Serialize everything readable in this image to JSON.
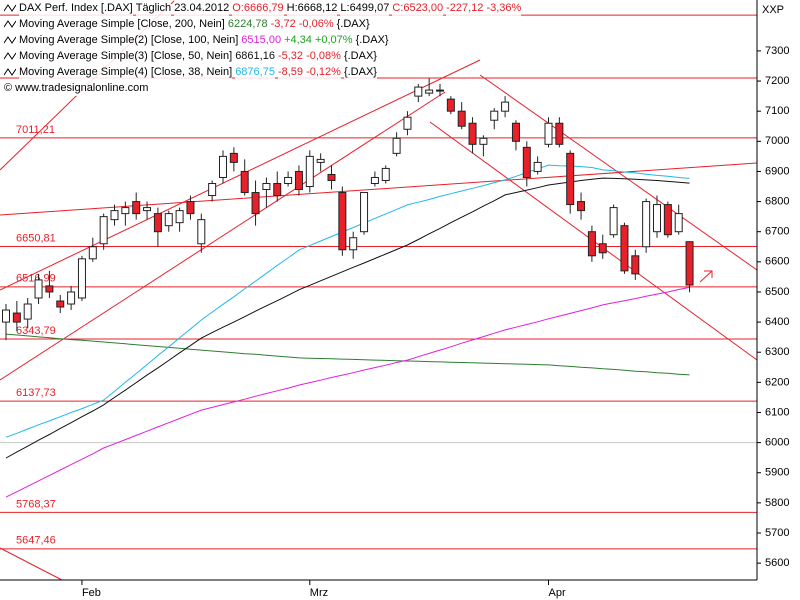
{
  "header": {
    "name": "DAX Perf. Index [.DAX]",
    "interval": "Täglich",
    "date": "23.04.2012",
    "open": "O:6666,79",
    "high": "H:6668,12",
    "low": "L:6499,07",
    "close": "C:6523,00",
    "change": "-227,12 -3,36%",
    "watermark": "© www.tradesignalonline.com",
    "axis_unit": "XXP"
  },
  "chart_data": {
    "type": "candlestick",
    "categories": [
      null,
      null,
      null,
      null,
      null,
      null,
      null,
      "Feb",
      null,
      null,
      null,
      null,
      null,
      null,
      null,
      null,
      null,
      null,
      null,
      null,
      null,
      null,
      null,
      null,
      null,
      null,
      null,
      null,
      "Mrz",
      null,
      null,
      null,
      null,
      null,
      null,
      null,
      null,
      null,
      null,
      null,
      null,
      null,
      null,
      null,
      null,
      null,
      null,
      null,
      null,
      null,
      "Apr",
      null,
      null,
      null,
      null,
      null,
      null,
      null,
      null,
      null,
      null,
      null,
      null,
      null
    ],
    "open": [
      6400,
      6430,
      6410,
      6480,
      6520,
      6470,
      6460,
      6480,
      6610,
      6660,
      6740,
      6760,
      6800,
      6770,
      6760,
      6720,
      6730,
      6800,
      6660,
      6820,
      6880,
      6960,
      6900,
      6830,
      6840,
      6860,
      6860,
      6900,
      6850,
      6930,
      6890,
      6830,
      6640,
      6700,
      6860,
      6870,
      6960,
      7040,
      7150,
      7160,
      7170,
      7140,
      7100,
      7060,
      6990,
      7070,
      7100,
      7060,
      6980,
      6900,
      6990,
      7060,
      6960,
      6800,
      6700,
      6660,
      6690,
      6720,
      6620,
      6650,
      6700,
      6790,
      6700,
      6666.79
    ],
    "high": [
      6460,
      6470,
      6480,
      6560,
      6570,
      6490,
      6520,
      6620,
      6680,
      6760,
      6790,
      6800,
      6830,
      6800,
      6780,
      6770,
      6780,
      6820,
      6760,
      6870,
      6970,
      6980,
      6940,
      6870,
      6880,
      6900,
      6900,
      6920,
      6970,
      6960,
      6920,
      6850,
      6700,
      6830,
      6900,
      6920,
      7030,
      7100,
      7190,
      7210,
      7190,
      7150,
      7130,
      7080,
      7020,
      7110,
      7150,
      7070,
      7000,
      6950,
      7080,
      7080,
      6970,
      6830,
      6720,
      6690,
      6790,
      6730,
      6640,
      6810,
      6820,
      6800,
      6790,
      6668.12
    ],
    "low": [
      6340,
      6370,
      6380,
      6460,
      6480,
      6430,
      6440,
      6470,
      6600,
      6640,
      6720,
      6720,
      6740,
      6740,
      6650,
      6700,
      6700,
      6740,
      6630,
      6800,
      6860,
      6900,
      6820,
      6720,
      6780,
      6800,
      6850,
      6820,
      6830,
      6900,
      6840,
      6620,
      6610,
      6690,
      6850,
      6860,
      6950,
      7020,
      7130,
      7150,
      7150,
      7090,
      7040,
      6960,
      6950,
      7040,
      7080,
      6970,
      6850,
      6890,
      6980,
      6980,
      6760,
      6740,
      6600,
      6610,
      6680,
      6560,
      6540,
      6630,
      6680,
      6680,
      6690,
      6499.07
    ],
    "close": [
      6440,
      6400,
      6460,
      6540,
      6500,
      6450,
      6500,
      6610,
      6650,
      6750,
      6770,
      6780,
      6760,
      6780,
      6700,
      6760,
      6770,
      6760,
      6740,
      6860,
      6950,
      6930,
      6830,
      6760,
      6860,
      6820,
      6880,
      6840,
      6950,
      6940,
      6870,
      6640,
      6680,
      6830,
      6880,
      6910,
      7010,
      7080,
      7180,
      7170,
      7170,
      7100,
      7050,
      6990,
      7010,
      7100,
      7130,
      7000,
      6880,
      6930,
      7060,
      6990,
      6790,
      6770,
      6620,
      6630,
      6780,
      6570,
      6560,
      6800,
      6790,
      6690,
      6760,
      6523.0
    ],
    "up_color": "#ffffff",
    "down_color": "#e8202a",
    "overlays": [
      {
        "name": "Moving Average Simple [Close, 200, Nein]",
        "color": "#2e7d32",
        "legend_value": "6224,78",
        "legend_change": "-3,72 -0,06%",
        "change_color": "#e8202a",
        "symbol": "{.DAX}",
        "values": [
          6360,
          6357,
          6354,
          6351,
          6348,
          6345,
          6342,
          6340,
          6337,
          6334,
          6331,
          6328,
          6325,
          6322,
          6319,
          6316,
          6313,
          6310,
          6307,
          6304,
          6301,
          6298,
          6295,
          6293,
          6290,
          6287,
          6284,
          6281,
          6280,
          6279,
          6278,
          6277,
          6276,
          6275,
          6274,
          6273,
          6272,
          6271,
          6270,
          6269,
          6268,
          6267,
          6266,
          6265,
          6264,
          6263,
          6262,
          6261,
          6260,
          6259,
          6258,
          6255,
          6253,
          6250,
          6248,
          6245,
          6243,
          6240,
          6237,
          6235,
          6232,
          6230,
          6227,
          6224.78
        ]
      },
      {
        "name": "Moving Average Simple(2) [Close, 100, Nein]",
        "color": "#e020e0",
        "legend_value": "6515,00",
        "legend_change": "+4,34 +0,07%",
        "change_color": "#20a020",
        "symbol": "{.DAX}",
        "values": [
          5819,
          5837,
          5855,
          5873,
          5891,
          5909,
          5927,
          5945,
          5963,
          5982,
          5996,
          6010,
          6024,
          6038,
          6052,
          6066,
          6080,
          6094,
          6108,
          6117,
          6126,
          6135,
          6144,
          6154,
          6163,
          6172,
          6181,
          6191,
          6199,
          6207,
          6216,
          6224,
          6232,
          6241,
          6249,
          6257,
          6266,
          6274,
          6285,
          6296,
          6307,
          6318,
          6330,
          6341,
          6352,
          6363,
          6374,
          6383,
          6392,
          6401,
          6411,
          6420,
          6429,
          6438,
          6447,
          6457,
          6464,
          6471,
          6478,
          6486,
          6493,
          6500,
          6508,
          6515.0
        ]
      },
      {
        "name": "Moving Average Simple(3) [Close, 50, Nein]",
        "color": "#111111",
        "legend_value": "6861,16",
        "legend_change": "-5,32 -0,08%",
        "change_color": "#e8202a",
        "symbol": "{.DAX}",
        "values": [
          5949,
          5969,
          5988,
          6008,
          6027,
          6047,
          6066,
          6086,
          6105,
          6125,
          6150,
          6174,
          6199,
          6224,
          6248,
          6273,
          6298,
          6322,
          6347,
          6365,
          6383,
          6400,
          6418,
          6436,
          6454,
          6471,
          6489,
          6507,
          6522,
          6537,
          6552,
          6567,
          6582,
          6596,
          6611,
          6626,
          6641,
          6656,
          6674,
          6693,
          6711,
          6730,
          6748,
          6766,
          6785,
          6803,
          6822,
          6830,
          6838,
          6846,
          6855,
          6860,
          6865,
          6870,
          6874,
          6878,
          6877,
          6876,
          6874,
          6872,
          6870,
          6867,
          6864,
          6861.16
        ]
      },
      {
        "name": "Moving Average Simple(4) [Close, 38, Nein]",
        "color": "#20b8e8",
        "legend_value": "6876,75",
        "legend_change": "-8,59 -0,12%",
        "change_color": "#e8202a",
        "symbol": "{.DAX}",
        "values": [
          6018,
          6031,
          6045,
          6059,
          6072,
          6086,
          6100,
          6113,
          6127,
          6141,
          6170,
          6200,
          6229,
          6259,
          6289,
          6318,
          6348,
          6377,
          6407,
          6433,
          6459,
          6484,
          6510,
          6536,
          6562,
          6588,
          6613,
          6639,
          6654,
          6669,
          6684,
          6699,
          6714,
          6729,
          6744,
          6759,
          6774,
          6789,
          6798,
          6807,
          6817,
          6826,
          6835,
          6844,
          6853,
          6863,
          6872,
          6884,
          6896,
          6909,
          6921,
          6919,
          6918,
          6916,
          6913,
          6905,
          6902,
          6898,
          6895,
          6891,
          6887,
          6884,
          6880,
          6876.75
        ]
      }
    ],
    "levels": [
      7419,
      7210,
      {
        "value": 7011.21,
        "label": "7011,21"
      },
      {
        "value": 6650.81,
        "label": "6650,81"
      },
      {
        "value": 6516.99,
        "label": "6516,99"
      },
      {
        "value": 6343.79,
        "label": "6343,79"
      },
      {
        "value": 6137.73,
        "label": "6137,73"
      },
      {
        "value": 5768.37,
        "label": "5768,37"
      },
      {
        "value": 5647.46,
        "label": "5647,46"
      }
    ],
    "level_color": "#e8202a",
    "reference_lines": [
      6000
    ],
    "ylim": [
      5544,
      7469
    ],
    "yticks": [
      5600,
      5700,
      5800,
      5900,
      6000,
      6100,
      6200,
      6300,
      6400,
      6500,
      6600,
      6700,
      6800,
      6900,
      7000,
      7100,
      7200,
      7300
    ]
  }
}
